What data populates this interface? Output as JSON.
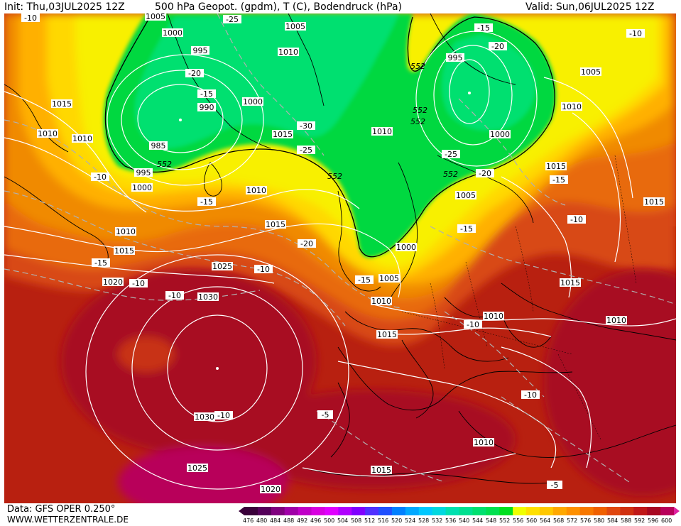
{
  "header": {
    "init": "Init: Thu,03JUL2025 12Z",
    "title": "500 hPa Geopot. (gpdm), T (C), Bodendruck (hPa)",
    "valid": "Valid: Sun,06JUL2025 12Z"
  },
  "footer": {
    "data_source": "Data: GFS OPER 0.250°",
    "website": "WWW.WETTERZENTRALE.DE"
  },
  "colorbar": {
    "ticks": [
      "476",
      "480",
      "484",
      "488",
      "492",
      "496",
      "500",
      "504",
      "508",
      "512",
      "516",
      "520",
      "524",
      "528",
      "532",
      "536",
      "540",
      "544",
      "548",
      "552",
      "556",
      "560",
      "564",
      "568",
      "572",
      "576",
      "580",
      "584",
      "588",
      "592",
      "596",
      "600"
    ],
    "colors": [
      "#3a003a",
      "#55005a",
      "#80007f",
      "#a000a8",
      "#c000c8",
      "#d800e0",
      "#e000ff",
      "#b000ff",
      "#8000ff",
      "#5030ff",
      "#2050ff",
      "#0080ff",
      "#00a8ff",
      "#00c8ff",
      "#00d8e0",
      "#00e0b0",
      "#00e090",
      "#00e070",
      "#00e050",
      "#00e020",
      "#f0ff00",
      "#ffe000",
      "#ffc800",
      "#ffa800",
      "#ff9000",
      "#f87800",
      "#f06000",
      "#e04810",
      "#d03010",
      "#c01818",
      "#a80820",
      "#b8005a"
    ]
  },
  "map_labels": {
    "isobars": [
      "1005",
      "1000",
      "995",
      "990",
      "985",
      "995",
      "1000",
      "1005",
      "1010",
      "1015",
      "1010",
      "1010",
      "1015",
      "1010",
      "1000",
      "995",
      "1000",
      "1005",
      "1010",
      "1015",
      "1010",
      "1015",
      "1010",
      "1015",
      "1020",
      "1025",
      "1030",
      "1030",
      "1025",
      "1020",
      "1015",
      "1010",
      "1005",
      "1000",
      "1005",
      "1010",
      "1015",
      "1010",
      "1015",
      "1010",
      "1015",
      "1010",
      "1010",
      "1005",
      "1010",
      "1015",
      "1010"
    ],
    "temperatures": [
      "-10",
      "-25",
      "-20",
      "-15",
      "-30",
      "-25",
      "-15",
      "-20",
      "-25",
      "-20",
      "-10",
      "-15",
      "-20",
      "-15",
      "-10",
      "-15",
      "-10",
      "-10",
      "-15",
      "-15",
      "-10",
      "-5",
      "-10",
      "-10",
      "-5",
      "-10",
      "-10"
    ],
    "geopotential": [
      "552",
      "552",
      "552",
      "552",
      "552",
      "552"
    ]
  }
}
